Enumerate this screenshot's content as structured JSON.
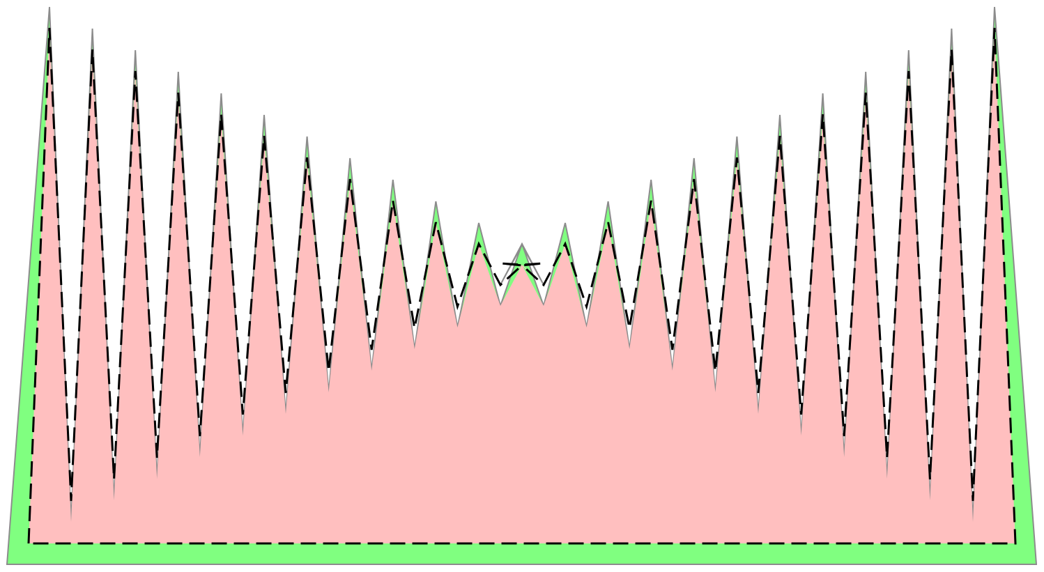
{
  "figure": {
    "description_free": true,
    "teeth_per_side": 12,
    "outer_shape": {
      "fill_color": "#80ff80",
      "stroke_color": "#8c8c8c"
    },
    "inner_shape": {
      "fill_color": "#ffbfbf",
      "stroke_color": "#8c8c8c"
    },
    "dashed_outline": {
      "stroke_color": "#000000"
    }
  }
}
